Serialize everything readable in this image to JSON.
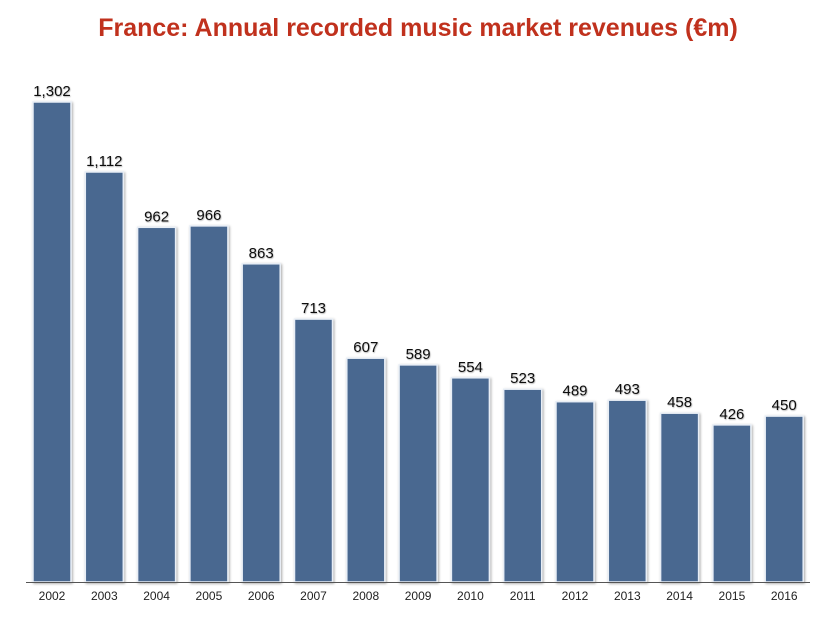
{
  "colors": {
    "title": "#c0311d",
    "bar": "#4a6790",
    "bar_edge": "#e8eef6",
    "axis": "#555555"
  },
  "chart_data": {
    "type": "bar",
    "title": "France: Annual recorded music market revenues (€m)",
    "xlabel": "",
    "ylabel": "",
    "ylim": [
      0,
      1302
    ],
    "grid": false,
    "legend": "none",
    "categories": [
      "2002",
      "2003",
      "2004",
      "2005",
      "2006",
      "2007",
      "2008",
      "2009",
      "2010",
      "2011",
      "2012",
      "2013",
      "2014",
      "2015",
      "2016"
    ],
    "values": [
      1302,
      1112,
      962,
      966,
      863,
      713,
      607,
      589,
      554,
      523,
      489,
      493,
      458,
      426,
      450
    ],
    "value_labels": [
      "1,302",
      "1,112",
      "962",
      "966",
      "863",
      "713",
      "607",
      "589",
      "554",
      "523",
      "489",
      "493",
      "458",
      "426",
      "450"
    ]
  }
}
